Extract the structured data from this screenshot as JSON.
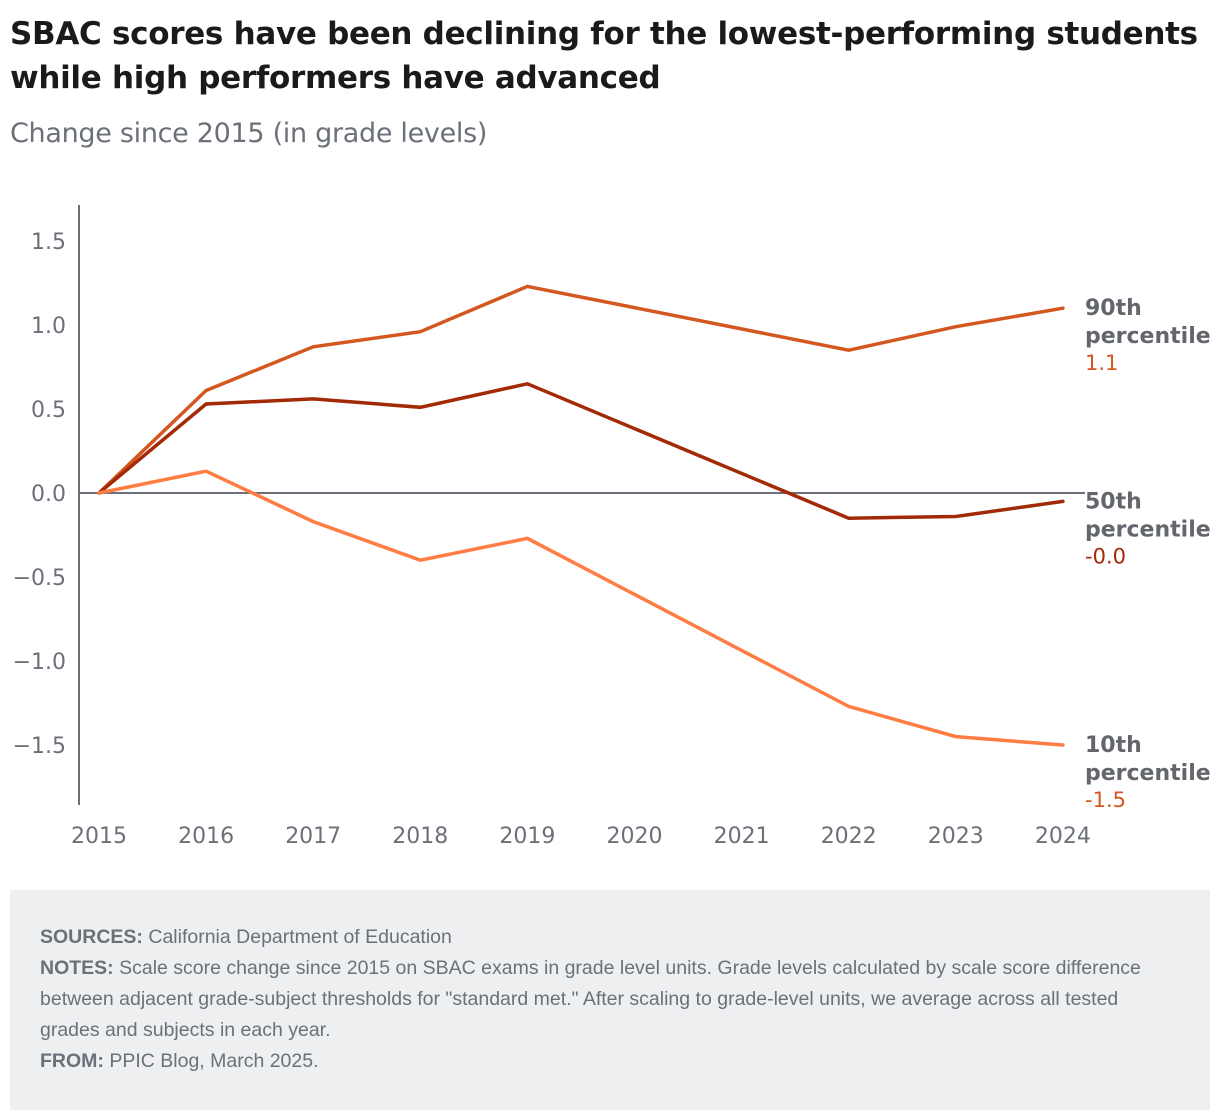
{
  "header": {
    "title": "SBAC scores have been declining for the lowest-performing students while high performers have advanced",
    "subtitle": "Change since 2015 (in grade levels)"
  },
  "chart_data": {
    "type": "line",
    "title": "SBAC scores have been declining for the lowest-performing students while high performers have advanced",
    "subtitle": "Change since 2015 (in grade levels)",
    "xlabel": "",
    "ylabel": "",
    "x": [
      "2015",
      "2016",
      "2017",
      "2018",
      "2019",
      "2020",
      "2021",
      "2022",
      "2023",
      "2024"
    ],
    "ylim": [
      -1.85,
      1.7
    ],
    "yticks": [
      1.5,
      1.0,
      0.5,
      0.0,
      -0.5,
      -1.0,
      -1.5
    ],
    "ytick_labels": [
      "1.5",
      "1.0",
      "0.5",
      "0.0",
      "−0.5",
      "−1.0",
      "−1.5"
    ],
    "grid": false,
    "zero_line": true,
    "legend": "direct labels at right end of lines",
    "series": [
      {
        "name": "90th percentile",
        "label_line1": "90th",
        "label_line2": "percentile",
        "end_label": "1.1",
        "color": "#d4571f",
        "value_color": "#d4571f",
        "values": [
          0.0,
          0.61,
          0.87,
          0.96,
          1.23,
          null,
          null,
          0.85,
          0.99,
          1.1
        ]
      },
      {
        "name": "50th percentile",
        "label_line1": "50th",
        "label_line2": "percentile",
        "end_label": "-0.0",
        "color": "#a32a06",
        "value_color": "#a32a06",
        "values": [
          0.0,
          0.53,
          0.56,
          0.51,
          0.65,
          null,
          null,
          -0.15,
          -0.14,
          -0.05
        ]
      },
      {
        "name": "10th percentile",
        "label_line1": "10th",
        "label_line2": "percentile",
        "end_label": "-1.5",
        "color": "#ff7c43",
        "value_color": "#d4571f",
        "values": [
          0.0,
          0.13,
          -0.17,
          -0.4,
          -0.27,
          null,
          null,
          -1.27,
          -1.45,
          -1.5
        ]
      }
    ]
  },
  "footer": {
    "sources_label": "SOURCES:",
    "sources_text": " California Department of Education",
    "notes_label": "NOTES:",
    "notes_text": " Scale score change since 2015 on SBAC exams in grade level units. Grade levels calculated by scale score difference between adjacent grade-subject thresholds for \"standard met.\" After scaling to grade-level units, we average across all tested grades and subjects in each year.",
    "from_label": "FROM:",
    "from_text": " PPIC Blog, March 2025."
  }
}
